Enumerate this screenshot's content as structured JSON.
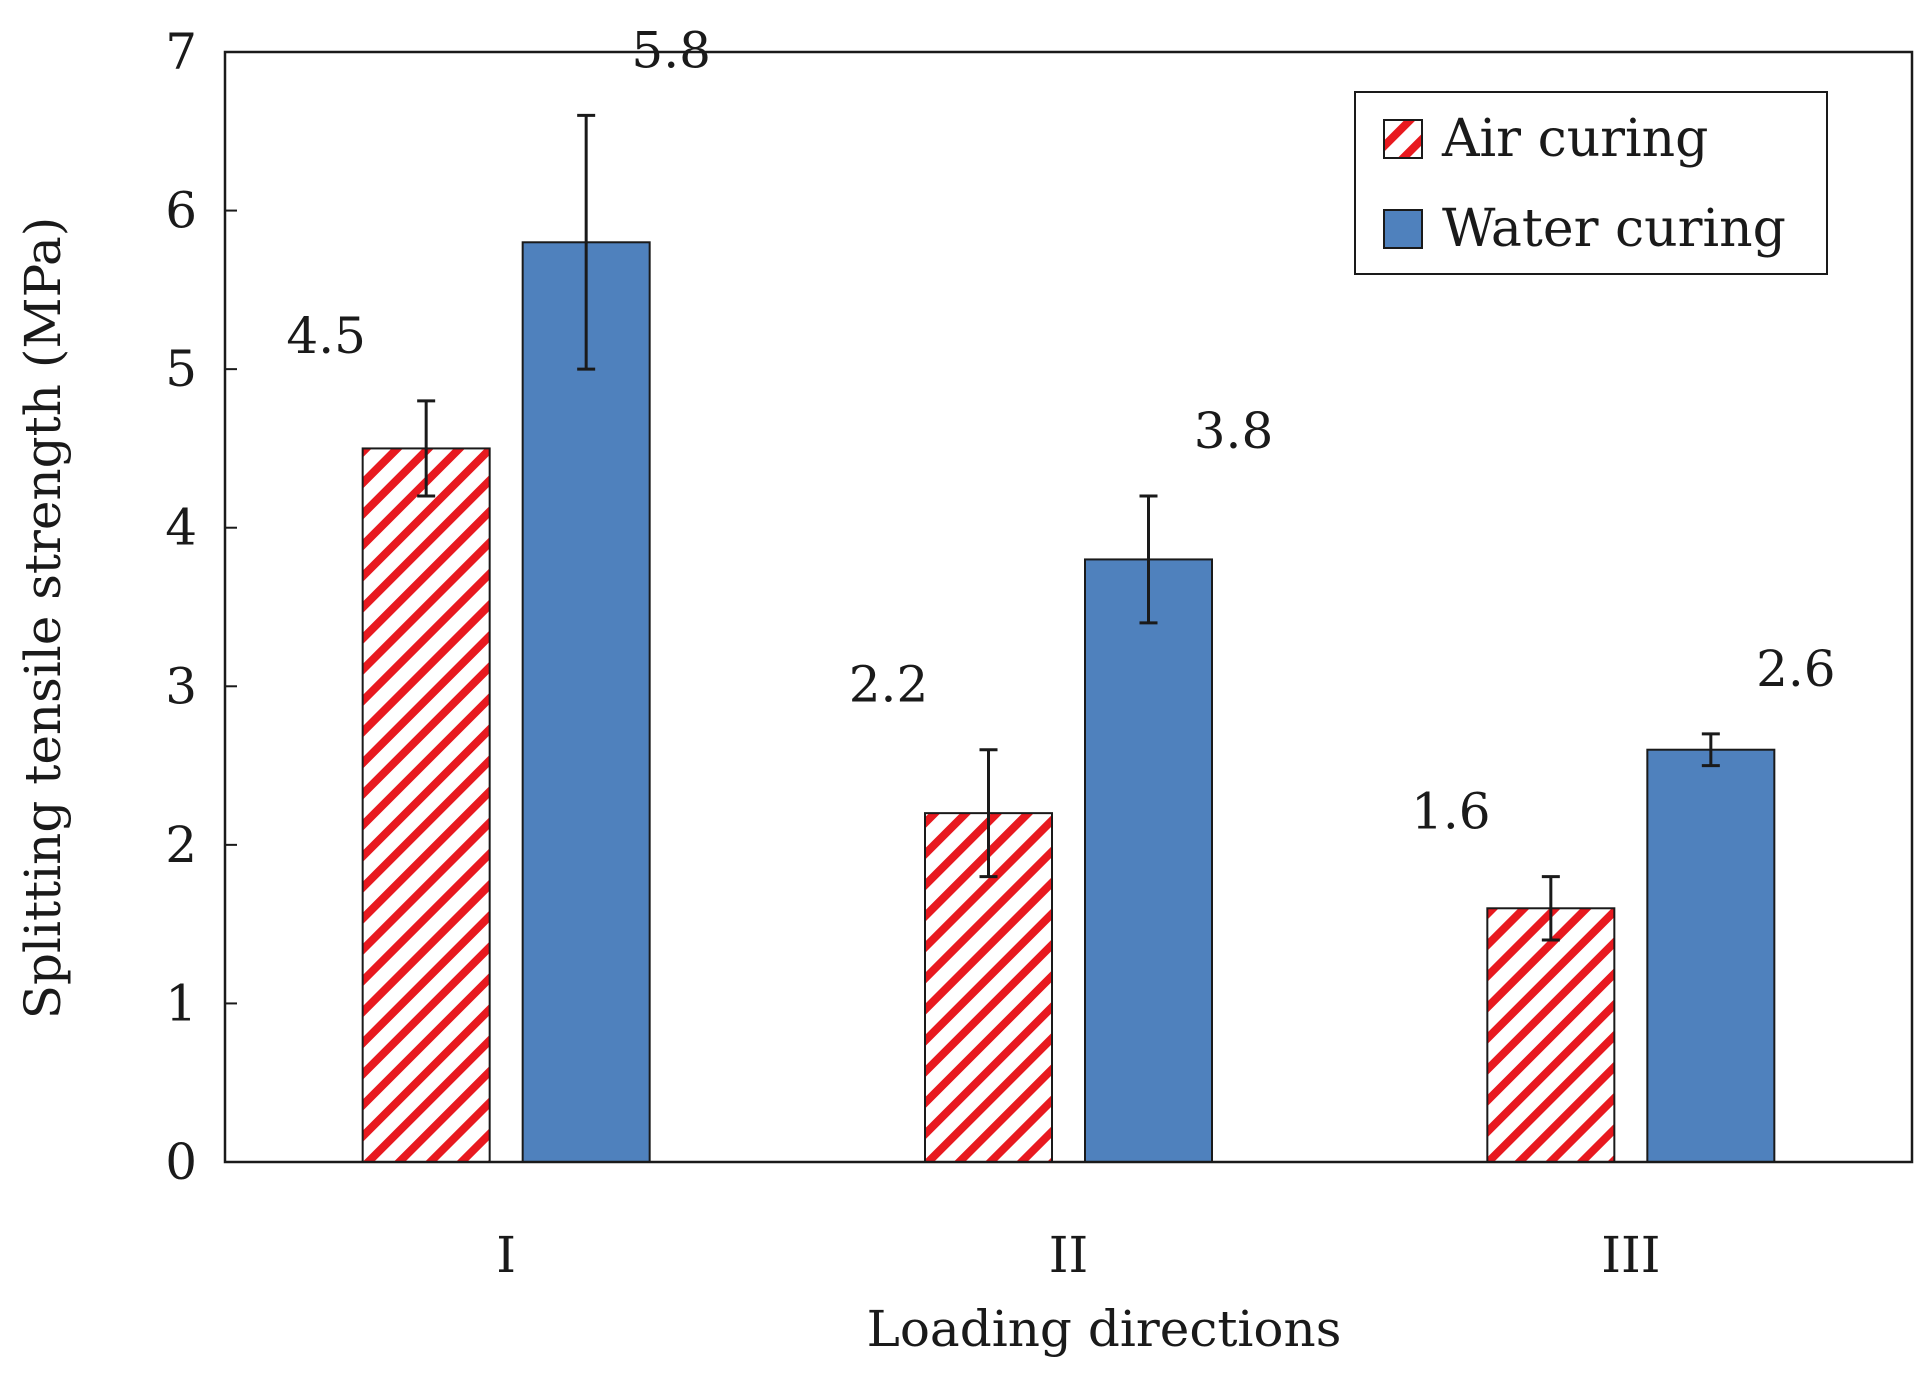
{
  "chart_data": {
    "type": "bar",
    "title": "",
    "xlabel": "Loading  directions",
    "ylabel": "Splitting  tensile  strength (MPa)",
    "categories": [
      "I",
      "II",
      "III"
    ],
    "ylim": [
      0,
      7
    ],
    "yticks": [
      0,
      1,
      2,
      3,
      4,
      5,
      6,
      7
    ],
    "grid": false,
    "legend_position": "top-right",
    "series": [
      {
        "name": "Air curing",
        "values": [
          4.5,
          2.2,
          1.6
        ],
        "value_labels": [
          "4.5",
          "2.2",
          "1.6"
        ],
        "error_low": [
          4.2,
          1.8,
          1.4
        ],
        "error_high": [
          4.8,
          2.6,
          1.8
        ],
        "fill": "hatch",
        "color": "#e8191f"
      },
      {
        "name": "Water curing",
        "values": [
          5.8,
          3.8,
          2.6
        ],
        "value_labels": [
          "5.8",
          "3.8",
          "2.6"
        ],
        "error_low": [
          5.0,
          3.4,
          2.5
        ],
        "error_high": [
          6.6,
          4.2,
          2.7
        ],
        "fill": "solid",
        "color": "#4f81bd"
      }
    ]
  }
}
